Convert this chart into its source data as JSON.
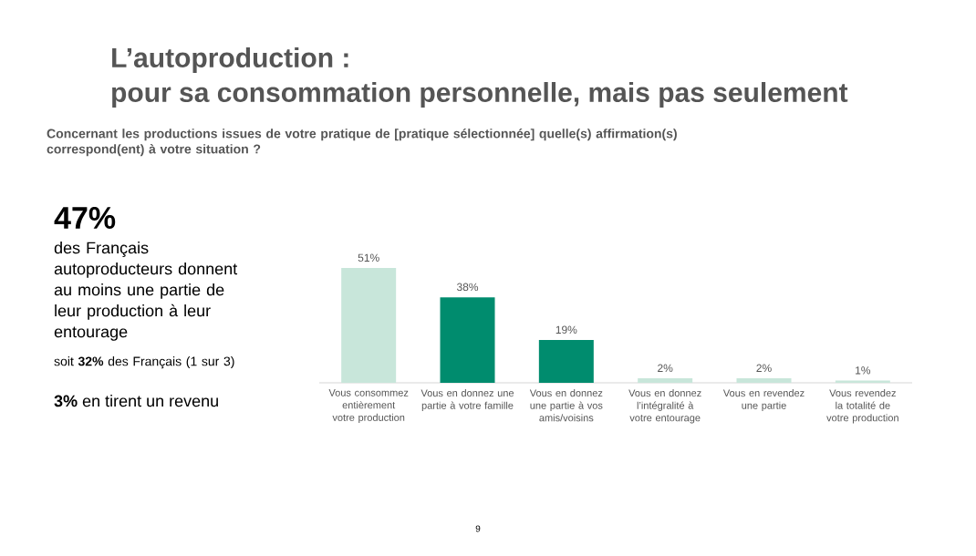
{
  "chart_data": {
    "type": "bar",
    "title": "L’autoproduction :",
    "subtitle": "pour sa consommation personnelle, mais pas seulement",
    "categories": [
      "Vous consommez entièrement votre production",
      "Vous en donnez une partie à votre famille",
      "Vous en donnez une partie à vos amis/voisins",
      "Vous en donnez l’intégralité à votre entourage",
      "Vous en revendez une partie",
      "Vous revendez la totalité de votre production"
    ],
    "values": [
      51,
      38,
      19,
      2,
      2,
      1
    ],
    "colors": [
      "#c8e6da",
      "#008c6e",
      "#008c6e",
      "#c8e6da",
      "#c8e6da",
      "#c8e6da"
    ],
    "value_labels": [
      "51%",
      "38%",
      "19%",
      "2%",
      "2%",
      "1%"
    ],
    "annotations": [
      "Concernant les productions issues de votre pratique de [pratique sélectionnée] quelle(s) affirmation(s) correspond(ent) à votre situation ?",
      "47%",
      "des Français autoproducteurs donnent au moins une partie de leur production à leur entourage",
      "soit **32%** des Français (1 sur 3)",
      "**3%** en tirent un revenu",
      "9"
    ]
  }
}
